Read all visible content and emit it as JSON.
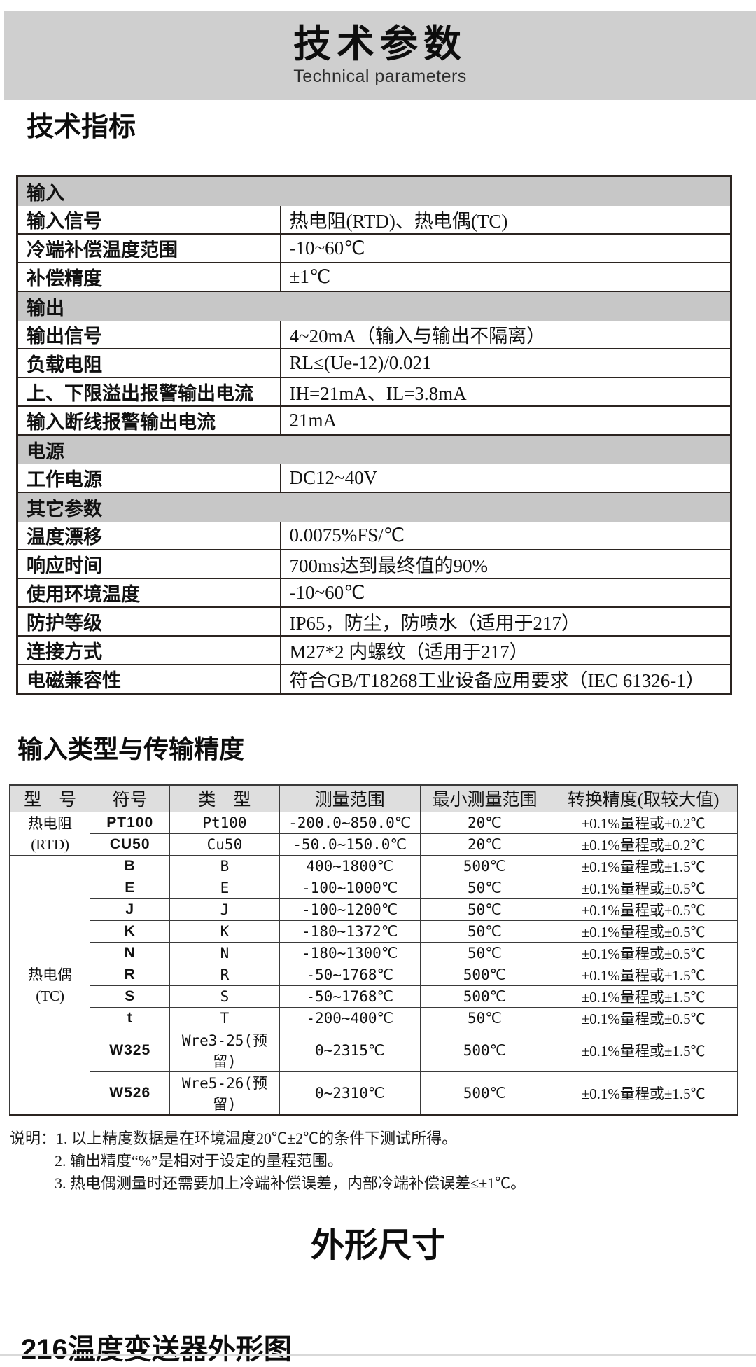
{
  "banner": {
    "title": "技术参数",
    "subtitle": "Technical parameters"
  },
  "colors": {
    "banner_bg": "#cfcfcf",
    "section_row_bg": "#c7c7c7",
    "table2_header_bg": "#dedede",
    "border_dark": "#2b2420",
    "text": "#111111"
  },
  "spec_section": {
    "heading": "技术指标",
    "rows": [
      {
        "type": "section",
        "label": "输入"
      },
      {
        "type": "data",
        "label": "输入信号",
        "value": "热电阻(RTD)、热电偶(TC)"
      },
      {
        "type": "data",
        "label": "冷端补偿温度范围",
        "value": "-10~60℃"
      },
      {
        "type": "data",
        "label": "补偿精度",
        "value": "±1℃"
      },
      {
        "type": "section",
        "label": "输出"
      },
      {
        "type": "data",
        "label": "输出信号",
        "value": "4~20mA（输入与输出不隔离）"
      },
      {
        "type": "data",
        "label": "负载电阻",
        "value": "RL≤(Ue-12)/0.021"
      },
      {
        "type": "data",
        "label": "上、下限溢出报警输出电流",
        "value": "IH=21mA、IL=3.8mA"
      },
      {
        "type": "data",
        "label": "输入断线报警输出电流",
        "value": "21mA"
      },
      {
        "type": "section",
        "label": "电源"
      },
      {
        "type": "data",
        "label": "工作电源",
        "value": "DC12~40V"
      },
      {
        "type": "section",
        "label": "其它参数"
      },
      {
        "type": "data",
        "label": "温度漂移",
        "value": "0.0075%FS/℃"
      },
      {
        "type": "data",
        "label": "响应时间",
        "value": "700ms达到最终值的90%"
      },
      {
        "type": "data",
        "label": "使用环境温度",
        "value": "-10~60℃"
      },
      {
        "type": "data",
        "label": "防护等级",
        "value": "IP65，防尘，防喷水（适用于217）"
      },
      {
        "type": "data",
        "label": "连接方式",
        "value": "M27*2 内螺纹（适用于217）"
      },
      {
        "type": "data",
        "label": "电磁兼容性",
        "value": "符合GB/T18268工业设备应用要求（IEC 61326-1）"
      }
    ]
  },
  "accuracy_section": {
    "heading": "输入类型与传输精度",
    "headers": [
      "型　号",
      "符号",
      "类　型",
      "测量范围",
      "最小测量范围",
      "转换精度(取较大值)"
    ],
    "groups": [
      {
        "model": "热电阻",
        "model_sub": "(RTD)",
        "rows": [
          {
            "symbol": "PT100",
            "type": "Pt100",
            "range": "-200.0~850.0℃",
            "min_range": "20℃",
            "accuracy": "±0.1%量程或±0.2℃"
          },
          {
            "symbol": "CU50",
            "type": "Cu50",
            "range": "-50.0~150.0℃",
            "min_range": "20℃",
            "accuracy": "±0.1%量程或±0.2℃"
          }
        ]
      },
      {
        "model": "热电偶",
        "model_sub": "(TC)",
        "rows": [
          {
            "symbol": "B",
            "type": "B",
            "range": "400~1800℃",
            "min_range": "500℃",
            "accuracy": "±0.1%量程或±1.5℃"
          },
          {
            "symbol": "E",
            "type": "E",
            "range": "-100~1000℃",
            "min_range": "50℃",
            "accuracy": "±0.1%量程或±0.5℃"
          },
          {
            "symbol": "J",
            "type": "J",
            "range": "-100~1200℃",
            "min_range": "50℃",
            "accuracy": "±0.1%量程或±0.5℃"
          },
          {
            "symbol": "K",
            "type": "K",
            "range": "-180~1372℃",
            "min_range": "50℃",
            "accuracy": "±0.1%量程或±0.5℃"
          },
          {
            "symbol": "N",
            "type": "N",
            "range": "-180~1300℃",
            "min_range": "50℃",
            "accuracy": "±0.1%量程或±0.5℃"
          },
          {
            "symbol": "R",
            "type": "R",
            "range": "-50~1768℃",
            "min_range": "500℃",
            "accuracy": "±0.1%量程或±1.5℃"
          },
          {
            "symbol": "S",
            "type": "S",
            "range": "-50~1768℃",
            "min_range": "500℃",
            "accuracy": "±0.1%量程或±1.5℃"
          },
          {
            "symbol": "t",
            "type": "T",
            "range": "-200~400℃",
            "min_range": "50℃",
            "accuracy": "±0.1%量程或±0.5℃"
          },
          {
            "symbol": "W325",
            "type": "Wre3-25(预留)",
            "range": "0~2315℃",
            "min_range": "500℃",
            "accuracy": "±0.1%量程或±1.5℃"
          },
          {
            "symbol": "W526",
            "type": "Wre5-26(预留)",
            "range": "0~2310℃",
            "min_range": "500℃",
            "accuracy": "±0.1%量程或±1.5℃"
          }
        ]
      }
    ]
  },
  "notes": {
    "prefix": "说明：",
    "items": [
      "1. 以上精度数据是在环境温度20℃±2℃的条件下测试所得。",
      "2. 输出精度“%”是相对于设定的量程范围。",
      "3. 热电偶测量时还需要加上冷端补偿误差，内部冷端补偿误差≤±1℃。"
    ]
  },
  "dimension_section": {
    "heading": "外形尺寸"
  },
  "outline_section": {
    "heading": "216温度变送器外形图"
  }
}
